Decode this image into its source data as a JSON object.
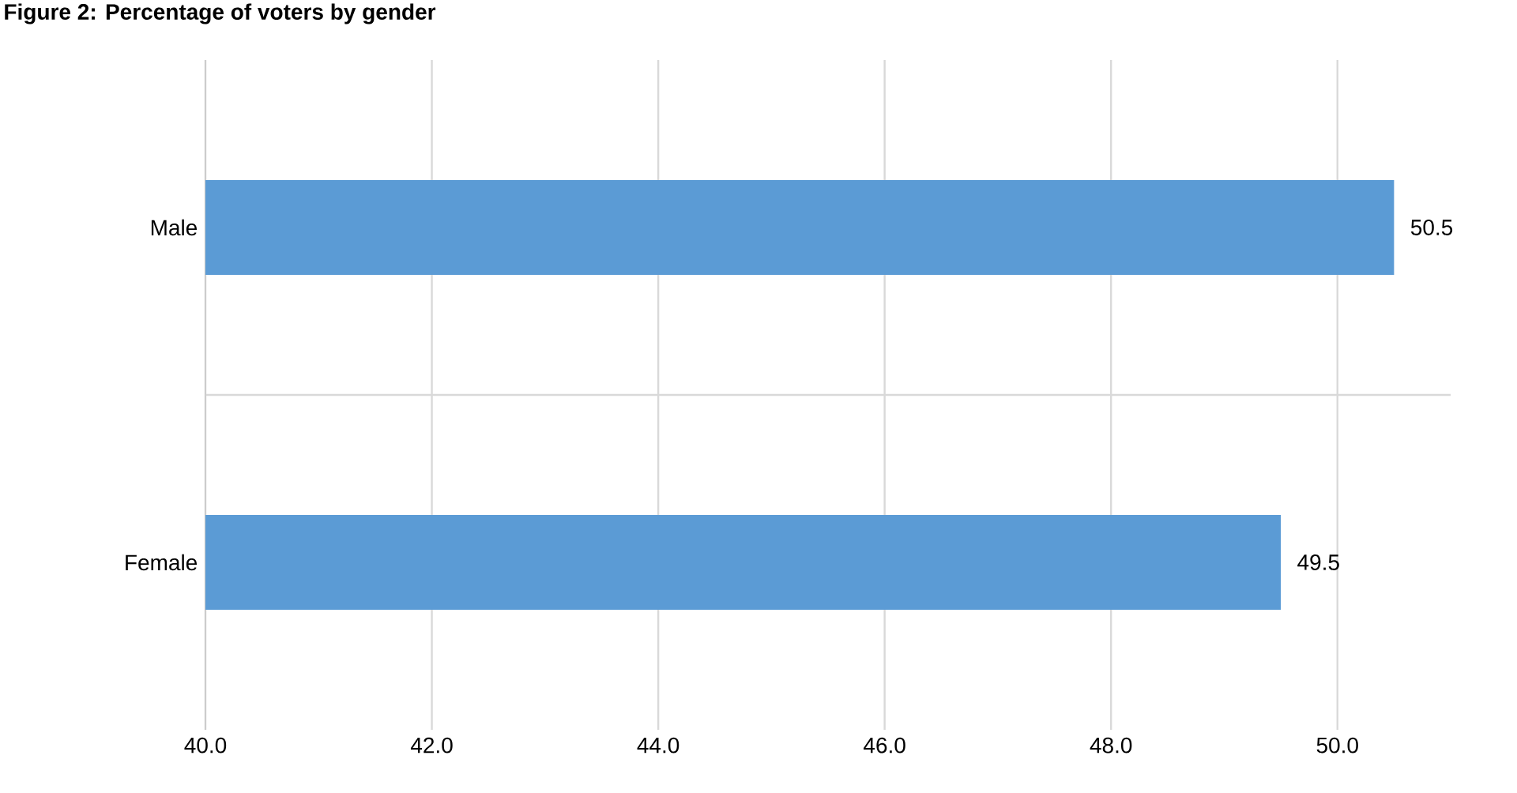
{
  "chart_data": {
    "type": "bar",
    "orientation": "horizontal",
    "title": "Figure 2: Percentage of voters by gender",
    "categories": [
      "Male",
      "Female"
    ],
    "values": [
      50.5,
      49.5
    ],
    "color": "#5b9bd5",
    "data_labels": true,
    "xlim": [
      40,
      51
    ],
    "xticks": [
      {
        "value": 40,
        "label": "40.0"
      },
      {
        "value": 42,
        "label": "42.0"
      },
      {
        "value": 44,
        "label": "44.0"
      },
      {
        "value": 46,
        "label": "46.0"
      },
      {
        "value": 48,
        "label": "48.0"
      },
      {
        "value": 50,
        "label": "50.0"
      }
    ],
    "grid": true
  }
}
